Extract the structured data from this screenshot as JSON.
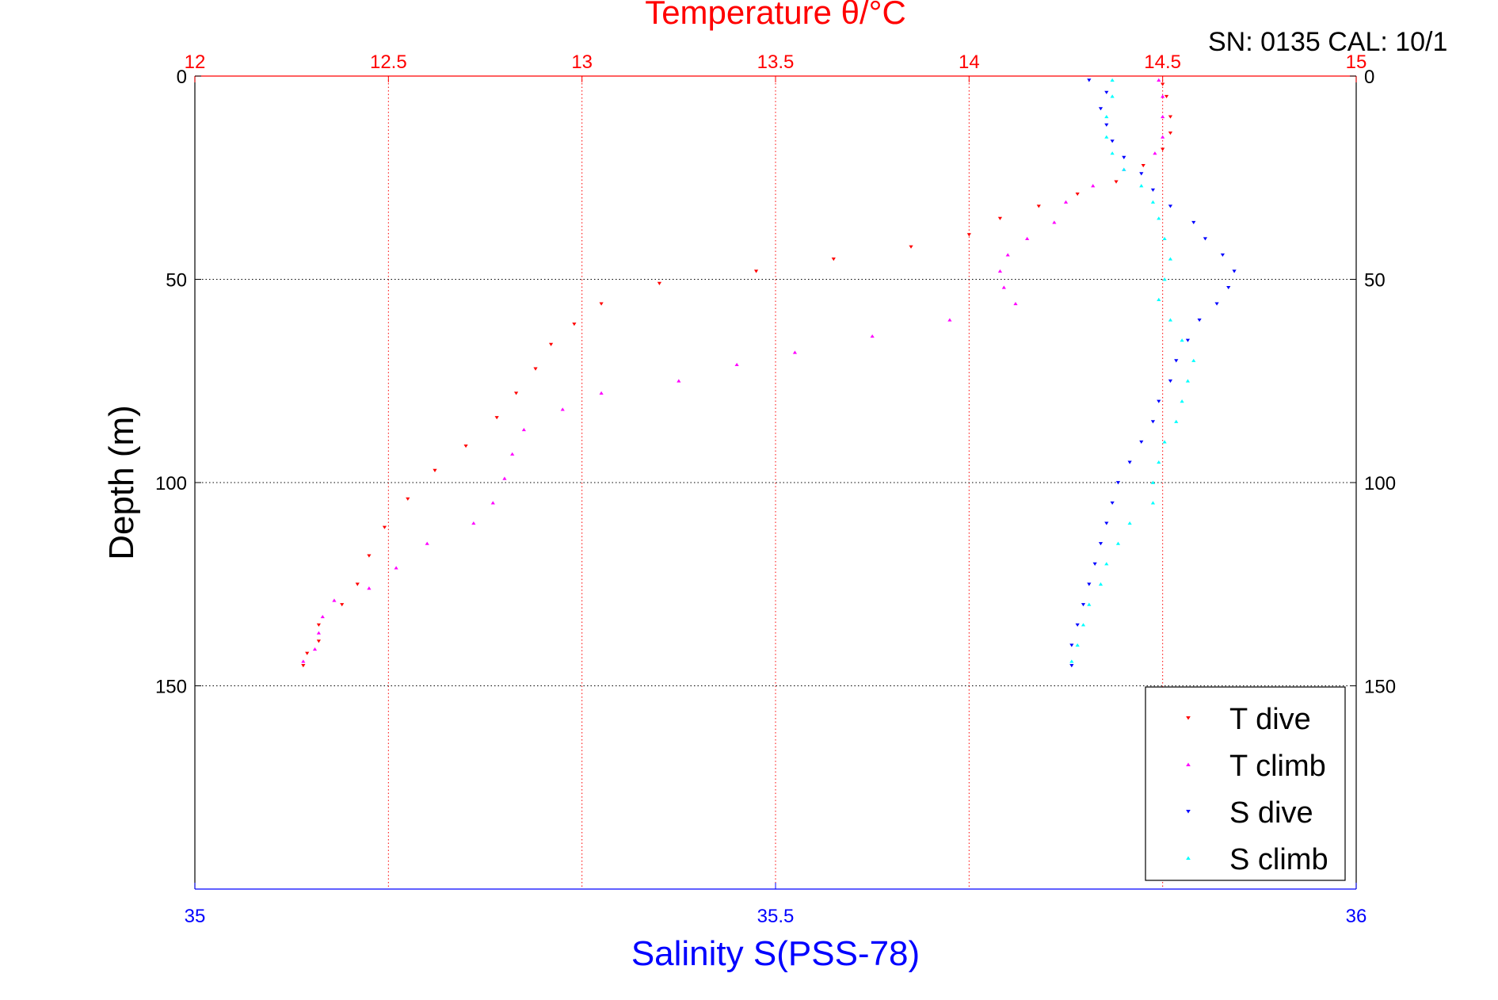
{
  "chart_data": {
    "type": "scatter",
    "title": "Temperature θ/°C",
    "subtitle": "SN: 0135  CAL: 10/1",
    "xlabel": "Salinity S(PSS-78)",
    "ylabel": "Depth (m)",
    "x_top": {
      "label": "Temperature θ/°C",
      "range": [
        12,
        15
      ],
      "ticks": [
        "12",
        "12.5",
        "13",
        "13.5",
        "14",
        "14.5",
        "15"
      ],
      "color": "#ff0000"
    },
    "x_bottom": {
      "label": "Salinity S(PSS-78)",
      "range": [
        35,
        36
      ],
      "ticks": [
        "35",
        "35.5",
        "36"
      ],
      "color": "#0000ff"
    },
    "y": {
      "range": [
        0,
        200
      ],
      "reversed": true,
      "ticks": [
        "0",
        "50",
        "100",
        "150"
      ]
    },
    "grid": true,
    "legend": {
      "position": "bottom-right",
      "entries": [
        "T dive",
        "T climb",
        "S dive",
        "S climb"
      ]
    },
    "series": [
      {
        "name": "T dive",
        "axis": "temperature",
        "color": "#ff0000",
        "marker": "triangle-down",
        "points": [
          [
            14.5,
            2
          ],
          [
            14.51,
            5
          ],
          [
            14.52,
            10
          ],
          [
            14.52,
            14
          ],
          [
            14.5,
            18
          ],
          [
            14.45,
            22
          ],
          [
            14.38,
            26
          ],
          [
            14.28,
            29
          ],
          [
            14.18,
            32
          ],
          [
            14.08,
            35
          ],
          [
            14.0,
            39
          ],
          [
            13.85,
            42
          ],
          [
            13.65,
            45
          ],
          [
            13.45,
            48
          ],
          [
            13.2,
            51
          ],
          [
            13.05,
            56
          ],
          [
            12.98,
            61
          ],
          [
            12.92,
            66
          ],
          [
            12.88,
            72
          ],
          [
            12.83,
            78
          ],
          [
            12.78,
            84
          ],
          [
            12.7,
            91
          ],
          [
            12.62,
            97
          ],
          [
            12.55,
            104
          ],
          [
            12.49,
            111
          ],
          [
            12.45,
            118
          ],
          [
            12.42,
            125
          ],
          [
            12.38,
            130
          ],
          [
            12.32,
            135
          ],
          [
            12.32,
            139
          ],
          [
            12.29,
            142
          ],
          [
            12.28,
            145
          ]
        ]
      },
      {
        "name": "T climb",
        "axis": "temperature",
        "color": "#ff00ff",
        "marker": "triangle-up",
        "points": [
          [
            12.28,
            144
          ],
          [
            12.31,
            141
          ],
          [
            12.32,
            137
          ],
          [
            12.33,
            133
          ],
          [
            12.36,
            129
          ],
          [
            12.45,
            126
          ],
          [
            12.52,
            121
          ],
          [
            12.6,
            115
          ],
          [
            12.72,
            110
          ],
          [
            12.77,
            105
          ],
          [
            12.8,
            99
          ],
          [
            12.82,
            93
          ],
          [
            12.85,
            87
          ],
          [
            12.95,
            82
          ],
          [
            13.05,
            78
          ],
          [
            13.25,
            75
          ],
          [
            13.4,
            71
          ],
          [
            13.55,
            68
          ],
          [
            13.75,
            64
          ],
          [
            13.95,
            60
          ],
          [
            14.12,
            56
          ],
          [
            14.09,
            52
          ],
          [
            14.08,
            48
          ],
          [
            14.1,
            44
          ],
          [
            14.15,
            40
          ],
          [
            14.22,
            36
          ],
          [
            14.25,
            31
          ],
          [
            14.32,
            27
          ],
          [
            14.4,
            23
          ],
          [
            14.48,
            19
          ],
          [
            14.5,
            15
          ],
          [
            14.5,
            10
          ],
          [
            14.5,
            5
          ],
          [
            14.49,
            1
          ]
        ]
      },
      {
        "name": "S dive",
        "axis": "salinity",
        "color": "#0000ff",
        "marker": "triangle-down",
        "points": [
          [
            35.77,
            1
          ],
          [
            35.785,
            4
          ],
          [
            35.78,
            8
          ],
          [
            35.785,
            12
          ],
          [
            35.79,
            16
          ],
          [
            35.8,
            20
          ],
          [
            35.815,
            24
          ],
          [
            35.825,
            28
          ],
          [
            35.84,
            32
          ],
          [
            35.86,
            36
          ],
          [
            35.87,
            40
          ],
          [
            35.885,
            44
          ],
          [
            35.895,
            48
          ],
          [
            35.89,
            52
          ],
          [
            35.88,
            56
          ],
          [
            35.865,
            60
          ],
          [
            35.855,
            65
          ],
          [
            35.845,
            70
          ],
          [
            35.84,
            75
          ],
          [
            35.83,
            80
          ],
          [
            35.825,
            85
          ],
          [
            35.815,
            90
          ],
          [
            35.805,
            95
          ],
          [
            35.795,
            100
          ],
          [
            35.79,
            105
          ],
          [
            35.785,
            110
          ],
          [
            35.78,
            115
          ],
          [
            35.775,
            120
          ],
          [
            35.77,
            125
          ],
          [
            35.765,
            130
          ],
          [
            35.76,
            135
          ],
          [
            35.755,
            140
          ],
          [
            35.755,
            145
          ]
        ]
      },
      {
        "name": "S climb",
        "axis": "salinity",
        "color": "#00ffff",
        "marker": "triangle-up",
        "points": [
          [
            35.755,
            144
          ],
          [
            35.76,
            140
          ],
          [
            35.765,
            135
          ],
          [
            35.77,
            130
          ],
          [
            35.78,
            125
          ],
          [
            35.785,
            120
          ],
          [
            35.795,
            115
          ],
          [
            35.805,
            110
          ],
          [
            35.825,
            105
          ],
          [
            35.825,
            100
          ],
          [
            35.83,
            95
          ],
          [
            35.835,
            90
          ],
          [
            35.845,
            85
          ],
          [
            35.85,
            80
          ],
          [
            35.855,
            75
          ],
          [
            35.86,
            70
          ],
          [
            35.85,
            65
          ],
          [
            35.84,
            60
          ],
          [
            35.83,
            55
          ],
          [
            35.835,
            50
          ],
          [
            35.84,
            45
          ],
          [
            35.835,
            40
          ],
          [
            35.83,
            35
          ],
          [
            35.825,
            31
          ],
          [
            35.815,
            27
          ],
          [
            35.8,
            23
          ],
          [
            35.79,
            19
          ],
          [
            35.785,
            15
          ],
          [
            35.785,
            10
          ],
          [
            35.79,
            5
          ],
          [
            35.79,
            1
          ]
        ]
      }
    ]
  }
}
